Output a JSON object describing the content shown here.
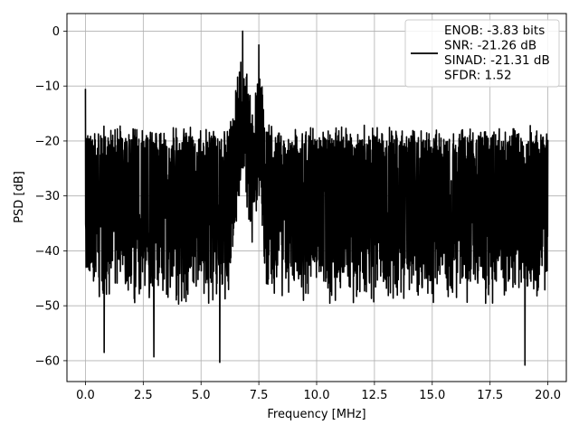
{
  "chart_data": {
    "type": "line",
    "title": "",
    "xlabel": "Frequency [MHz]",
    "ylabel": "PSD [dB]",
    "xlim": [
      -0.8,
      20.8
    ],
    "ylim": [
      -63.8,
      3.2
    ],
    "x_ticks": [
      0.0,
      2.5,
      5.0,
      7.5,
      10.0,
      12.5,
      15.0,
      17.5,
      20.0
    ],
    "x_tick_labels": [
      "0.0",
      "2.5",
      "5.0",
      "7.5",
      "10.0",
      "12.5",
      "15.0",
      "17.5",
      "20.0"
    ],
    "y_ticks": [
      0,
      -10,
      -20,
      -30,
      -40,
      -50,
      -60
    ],
    "y_tick_labels": [
      "0",
      "−10",
      "−20",
      "−30",
      "−40",
      "−50",
      "−60"
    ],
    "grid": true,
    "legend_position": "top-right",
    "series": [
      {
        "name": "ENOB: -3.83 bits\nSNR: -21.26 dB\nSINAD: -21.31 dB\nSFDR: 1.52",
        "color": "#000000",
        "x_range": [
          0.0,
          20.0
        ],
        "noise_floor_top_db": -17,
        "noise_floor_bottom_db": -50,
        "peaks": [
          {
            "x": 0.0,
            "y": -10.5
          },
          {
            "x": 6.8,
            "y": 0.0
          },
          {
            "x": 7.5,
            "y": -2.5
          }
        ],
        "deep_minima": [
          {
            "x": 5.8,
            "y": -60.3
          },
          {
            "x": 19.0,
            "y": -60.8
          },
          {
            "x": 2.95,
            "y": -59.3
          },
          {
            "x": 0.8,
            "y": -58.5
          }
        ]
      }
    ]
  }
}
